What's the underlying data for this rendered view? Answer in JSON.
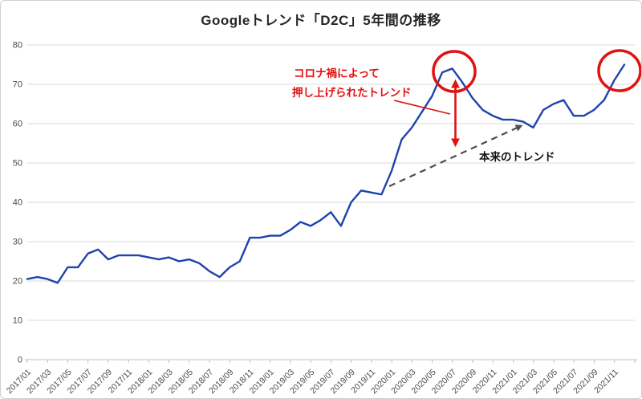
{
  "header": {
    "title": "Googleトレンド「D2C」5年間の推移"
  },
  "annotations": {
    "covid_line1": "コロナ禍によって",
    "covid_line2": "押し上げられたトレンド",
    "natural_trend": "本来のトレンド"
  },
  "colors": {
    "line": "#1e43ad",
    "grid": "#d9d9d9",
    "axis": "#bfbfbf",
    "tick_label": "#4a4a4a",
    "annotation_red": "#e01212",
    "dashed_trend": "#4d4d4d",
    "title": "#262626"
  },
  "chart_data": {
    "type": "line",
    "title": "Googleトレンド「D2C」5年間の推移",
    "series_name": "D2C",
    "legend": "none",
    "grid": "horizontal-only",
    "ylim": [
      0,
      80
    ],
    "y_ticks": [
      0,
      10,
      20,
      30,
      40,
      50,
      60,
      70,
      80
    ],
    "x_tick_labels": [
      "2017/01",
      "2017/03",
      "2017/05",
      "2017/07",
      "2017/09",
      "2017/11",
      "2018/01",
      "2018/03",
      "2018/05",
      "2018/07",
      "2018/09",
      "2018/11",
      "2019/01",
      "2019/03",
      "2019/05",
      "2019/07",
      "2019/09",
      "2019/11",
      "2020/01",
      "2020/03",
      "2020/05",
      "2020/07",
      "2020/09",
      "2020/11",
      "2021/01",
      "2021/03",
      "2021/05",
      "2021/07",
      "2021/09",
      "2021/11"
    ],
    "x": [
      "2017/01",
      "2017/02",
      "2017/03",
      "2017/04",
      "2017/05",
      "2017/06",
      "2017/07",
      "2017/08",
      "2017/09",
      "2017/10",
      "2017/11",
      "2017/12",
      "2018/01",
      "2018/02",
      "2018/03",
      "2018/04",
      "2018/05",
      "2018/06",
      "2018/07",
      "2018/08",
      "2018/09",
      "2018/10",
      "2018/11",
      "2018/12",
      "2019/01",
      "2019/02",
      "2019/03",
      "2019/04",
      "2019/05",
      "2019/06",
      "2019/07",
      "2019/08",
      "2019/09",
      "2019/10",
      "2019/11",
      "2019/12",
      "2020/01",
      "2020/02",
      "2020/03",
      "2020/04",
      "2020/05",
      "2020/06",
      "2020/07",
      "2020/08",
      "2020/09",
      "2020/10",
      "2020/11",
      "2020/12",
      "2021/01",
      "2021/02",
      "2021/03",
      "2021/04",
      "2021/05",
      "2021/06",
      "2021/07",
      "2021/08",
      "2021/09",
      "2021/10",
      "2021/11",
      "2021/12"
    ],
    "values": [
      20.5,
      21,
      20.5,
      19.5,
      23.5,
      23.5,
      27,
      28,
      25.5,
      26.5,
      26.5,
      26.5,
      26,
      25.5,
      26,
      25,
      25.5,
      24.5,
      22.5,
      21,
      23.5,
      25,
      31,
      31,
      31.5,
      31.5,
      33,
      35,
      34,
      35.5,
      37.5,
      34,
      40,
      43,
      42.5,
      42,
      48,
      56,
      59,
      63,
      67,
      73,
      74,
      70.5,
      66.5,
      63.5,
      62,
      61,
      61,
      60.5,
      59,
      63.5,
      65,
      66,
      62,
      62,
      63.5,
      66,
      71,
      75
    ]
  }
}
